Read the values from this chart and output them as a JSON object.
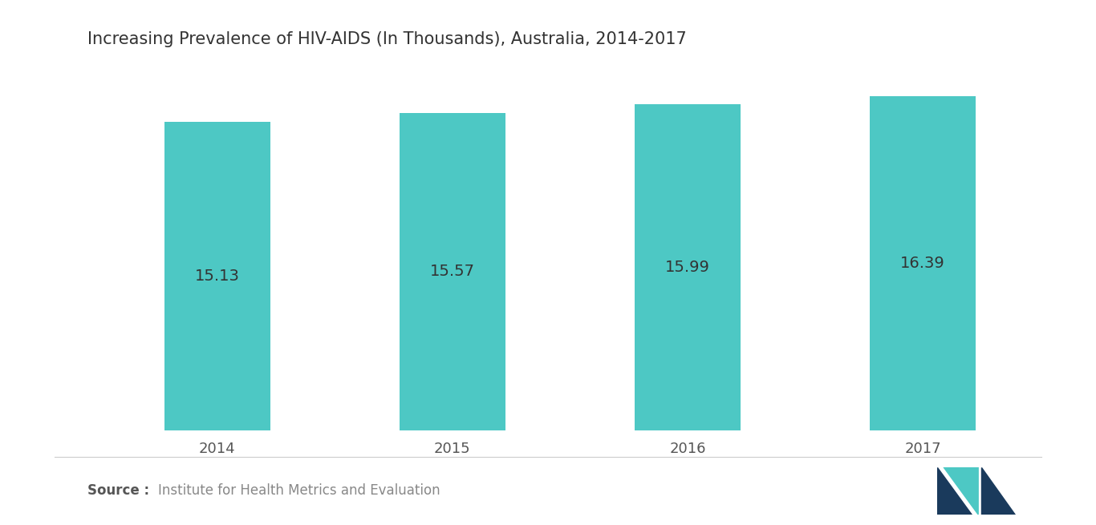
{
  "title": "Increasing Prevalence of HIV-AIDS (In Thousands), Australia, 2014-2017",
  "categories": [
    "2014",
    "2015",
    "2016",
    "2017"
  ],
  "values": [
    15.13,
    15.57,
    15.99,
    16.39
  ],
  "bar_color": "#4DC8C4",
  "label_color": "#333333",
  "background_color": "#ffffff",
  "title_fontsize": 15,
  "label_fontsize": 14,
  "tick_fontsize": 13,
  "source_bold": "Source :",
  "source_text": "Institute for Health Metrics and Evaluation",
  "source_fontsize": 12,
  "ylim_min": 0,
  "ylim_max": 17.5,
  "bar_width": 0.45,
  "logo_navy": "#1a3a5c",
  "logo_teal": "#4DC8C4"
}
